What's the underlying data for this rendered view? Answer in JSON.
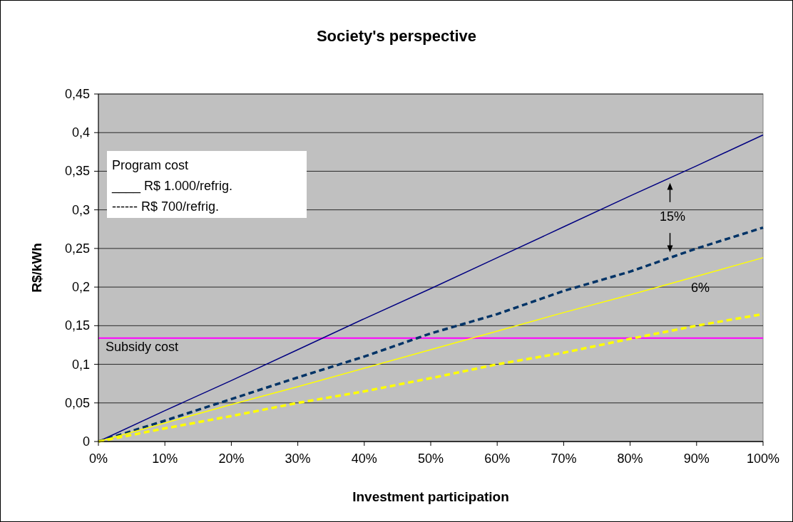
{
  "chart_data": {
    "type": "line",
    "title": "Society's perspective",
    "xlabel": "Investment participation",
    "ylabel": "R$/kWh",
    "x": [
      0,
      10,
      20,
      30,
      40,
      50,
      60,
      70,
      80,
      90,
      100
    ],
    "xlim": [
      0,
      100
    ],
    "xticks": [
      {
        "value": 0,
        "label": "0%"
      },
      {
        "value": 10,
        "label": "10%"
      },
      {
        "value": 20,
        "label": "20%"
      },
      {
        "value": 30,
        "label": "30%"
      },
      {
        "value": 40,
        "label": "40%"
      },
      {
        "value": 50,
        "label": "50%"
      },
      {
        "value": 60,
        "label": "60%"
      },
      {
        "value": 70,
        "label": "70%"
      },
      {
        "value": 80,
        "label": "80%"
      },
      {
        "value": 90,
        "label": "90%"
      },
      {
        "value": 100,
        "label": "100%"
      }
    ],
    "ylim": [
      0,
      0.45
    ],
    "yticks": [
      0,
      {
        "value": 0.05,
        "label": "0,05"
      },
      {
        "value": 0.1,
        "label": "0,1"
      },
      {
        "value": 0.15,
        "label": "0,15"
      },
      {
        "value": 0.2,
        "label": "0,2"
      },
      {
        "value": 0.25,
        "label": "0,25"
      },
      {
        "value": 0.3,
        "label": "0,3"
      },
      {
        "value": 0.35,
        "label": "0,35"
      },
      {
        "value": 0.4,
        "label": "0,4"
      },
      {
        "value": 0.45,
        "label": "0,45"
      }
    ],
    "series": [
      {
        "color": "#000080",
        "line_style": "solid",
        "values": [
          0,
          0.04,
          0.079,
          0.119,
          0.159,
          0.198,
          0.238,
          0.278,
          0.318,
          0.357,
          0.397
        ]
      },
      {
        "color": "#003366",
        "line_style": "dashed",
        "values": [
          0,
          0.027,
          0.055,
          0.083,
          0.11,
          0.14,
          0.165,
          0.195,
          0.22,
          0.25,
          0.277
        ]
      },
      {
        "color": "#ffff00",
        "line_style": "solid",
        "values": [
          0,
          0.024,
          0.048,
          0.071,
          0.095,
          0.119,
          0.143,
          0.167,
          0.19,
          0.214,
          0.238
        ]
      },
      {
        "color": "#ffff00",
        "line_style": "dashed",
        "values": [
          0,
          0.017,
          0.033,
          0.05,
          0.065,
          0.082,
          0.1,
          0.115,
          0.133,
          0.15,
          0.165
        ]
      }
    ],
    "ref_lines": [
      {
        "axis": "y",
        "value": 0.134,
        "label": "Subsidy cost",
        "color": "#ff00ff"
      }
    ],
    "annotations": [
      "Program cost",
      "____ R$ 1.000/refrig.",
      "------ R$ 700/refrig.",
      "15%",
      "6%"
    ],
    "grid": "y",
    "marker": "none"
  }
}
